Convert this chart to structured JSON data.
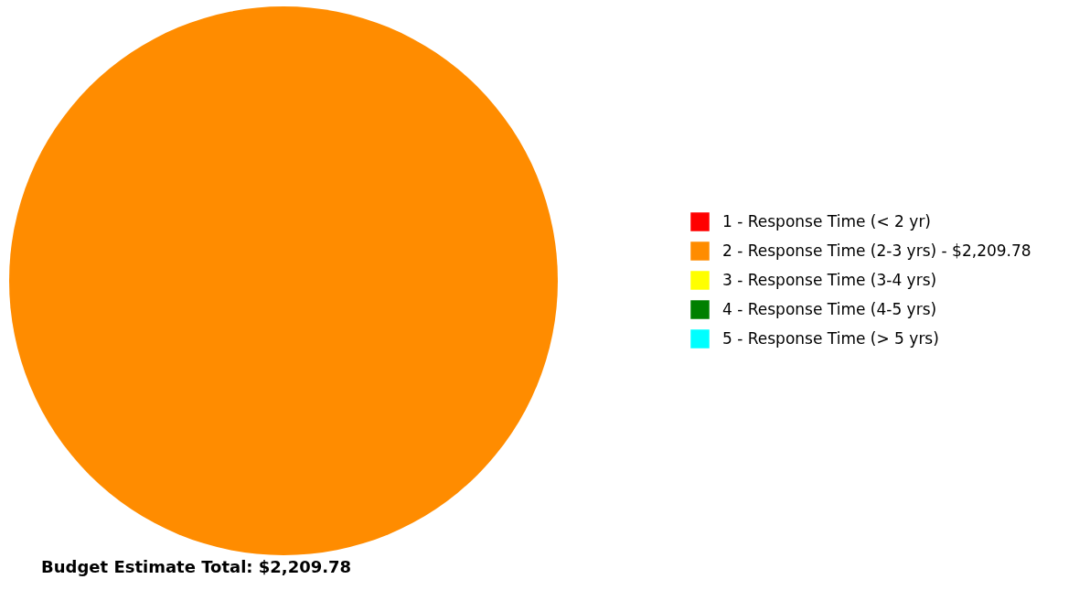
{
  "chart_data": {
    "type": "pie",
    "title": "Budget Estimate Total: $2,209.78",
    "categories": [
      "1 - Response Time (< 2 yr)",
      "2 - Response Time (2-3 yrs)",
      "3 - Response Time (3-4 yrs)",
      "4 - Response Time (4-5 yrs)",
      "5 - Response Time (> 5 yrs)"
    ],
    "values": [
      0,
      2209.78,
      0,
      0,
      0
    ],
    "value_labels": [
      null,
      "$2,209.78",
      null,
      null,
      null
    ],
    "colors": [
      "#ff0000",
      "#ff8c00",
      "#ffff00",
      "#008000",
      "#00ffff"
    ],
    "legend": "right"
  }
}
